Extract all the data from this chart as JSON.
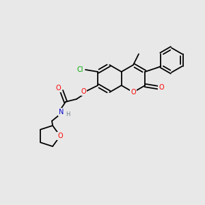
{
  "bg_color": "#e8e8e8",
  "bond_color": "#000000",
  "atom_colors": {
    "O": "#ff0000",
    "N": "#0000cd",
    "Cl": "#00aa00",
    "H": "#708090"
  },
  "lw": 1.3,
  "fs": 7.0,
  "r_hex": 20,
  "r_pent": 16
}
